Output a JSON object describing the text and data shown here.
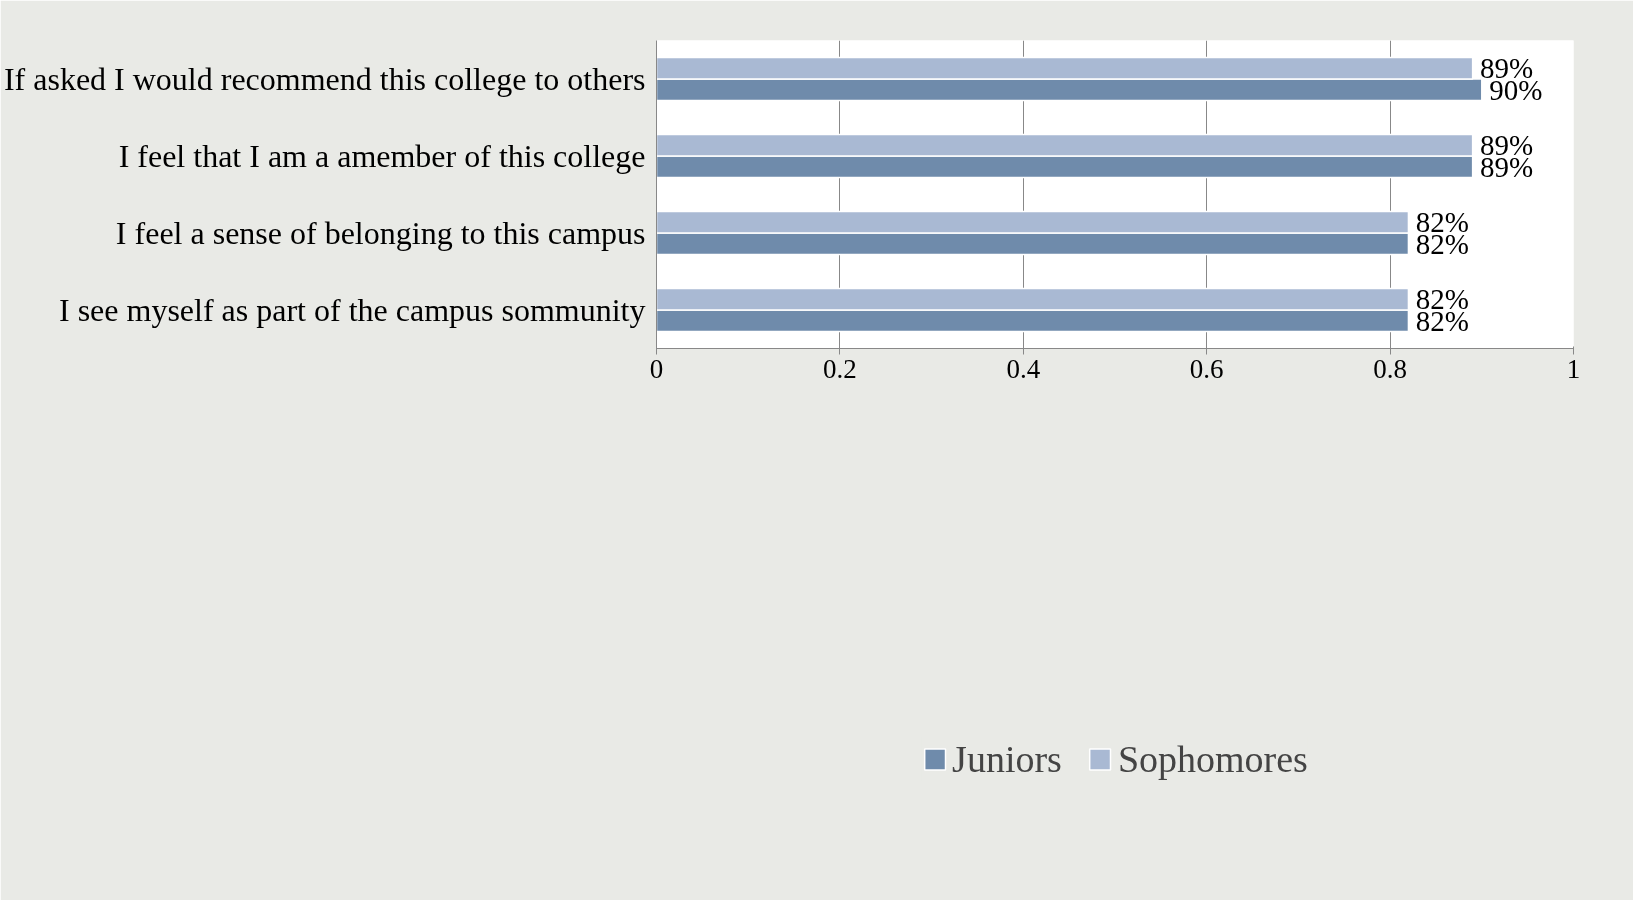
{
  "chart_data": {
    "type": "bar",
    "orientation": "horizontal",
    "categories": [
      "If asked I would recommend this college to others",
      "I feel that I am a amember of this college",
      "I feel a sense of belonging to this campus",
      "I see myself as part of the campus sommunity"
    ],
    "series": [
      {
        "name": "Juniors",
        "color": "#6f8bab",
        "values": [
          0.9,
          0.89,
          0.82,
          0.82
        ],
        "value_labels": [
          "90%",
          "89%",
          "82%",
          "82%"
        ]
      },
      {
        "name": "Sophomores",
        "color": "#a9b9d3",
        "values": [
          0.89,
          0.89,
          0.82,
          0.82
        ],
        "value_labels": [
          "89%",
          "89%",
          "82%",
          "82%"
        ]
      }
    ],
    "xlim": [
      0,
      1
    ],
    "xticks": [
      0,
      0.2,
      0.4,
      0.6,
      0.8,
      1
    ],
    "grid": "x",
    "legend": "bottom"
  }
}
